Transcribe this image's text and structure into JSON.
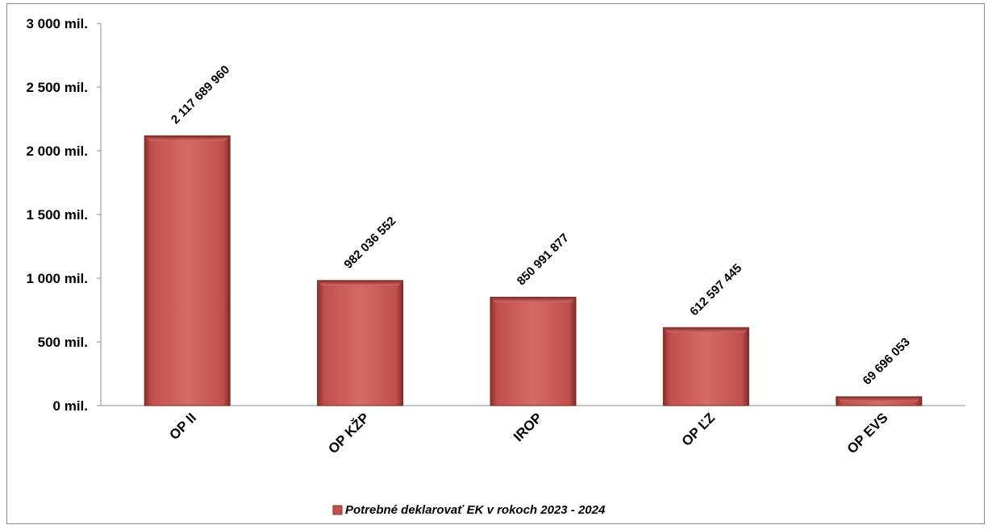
{
  "chart_data": {
    "type": "bar",
    "categories": [
      "OP II",
      "OP KŽP",
      "IROP",
      "OP ĽZ",
      "OP EVS"
    ],
    "series": [
      {
        "name": "Potrebné deklarovať EK v rokoch 2023 - 2024",
        "values": [
          2117689960,
          982036552,
          850991877,
          612597445,
          69696053
        ],
        "labels": [
          "2 117 689 960",
          "982 036 552",
          "850 991 877",
          "612 597 445",
          "69 696 053"
        ]
      }
    ],
    "yticks": [
      {
        "value": 0,
        "label": "0 mil."
      },
      {
        "value": 500000000,
        "label": "500 mil."
      },
      {
        "value": 1000000000,
        "label": "1 000 mil."
      },
      {
        "value": 1500000000,
        "label": "1 500 mil."
      },
      {
        "value": 2000000000,
        "label": "2 000 mil."
      },
      {
        "value": 2500000000,
        "label": "2 500 mil."
      },
      {
        "value": 3000000000,
        "label": "3 000 mil."
      }
    ],
    "ylim": [
      0,
      3000000000
    ],
    "grid": false,
    "legend_position": "bottom",
    "colors": {
      "bar": "#c0504d",
      "bar_light": "#d46a66",
      "bar_dark": "#8b2f2c"
    }
  }
}
